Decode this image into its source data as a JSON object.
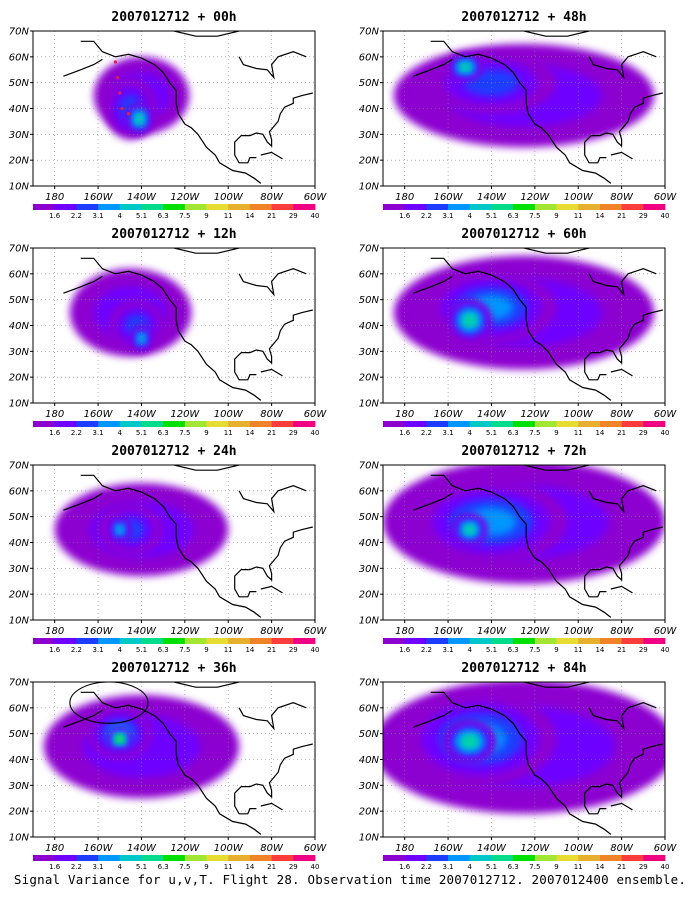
{
  "caption": "Signal Variance for u,v,T. Flight 28. Observation time 2007012712. 2007012400 ensemble.",
  "colors": [
    "#8c00d0",
    "#6e00ff",
    "#1e3cff",
    "#0096ff",
    "#00c8c8",
    "#00dc8c",
    "#00e000",
    "#a0e632",
    "#e6dc32",
    "#e6af2d",
    "#f08228",
    "#fa3c3c",
    "#f00082"
  ],
  "chart_data": [
    {
      "type": "heatmap",
      "title": "2007012712 + 00h",
      "x_ticks": [
        "180",
        "160W",
        "140W",
        "120W",
        "100W",
        "80W",
        "60W"
      ],
      "y_ticks": [
        "10N",
        "20N",
        "30N",
        "40N",
        "50N",
        "60N",
        "70N"
      ],
      "xlim": [
        -190,
        -60
      ],
      "ylim": [
        10,
        70
      ],
      "colorbar_levels": [
        "1.6",
        "2.2",
        "3.1",
        "4",
        "5.1",
        "6.3",
        "7.5",
        "9",
        "11",
        "14",
        "21",
        "29",
        "40"
      ],
      "blobs": [
        {
          "lon": -140,
          "lat": 45,
          "rx": 22,
          "ry": 15,
          "level": 1
        },
        {
          "lon": -145,
          "lat": 40,
          "rx": 12,
          "ry": 12,
          "level": 2
        },
        {
          "lon": -141,
          "lat": 36,
          "rx": 6,
          "ry": 6,
          "level": 5
        }
      ],
      "flight_track": [
        [
          -152,
          58
        ],
        [
          -151,
          52
        ],
        [
          -150,
          46
        ],
        [
          -149,
          40
        ],
        [
          -146,
          38
        ]
      ]
    },
    {
      "type": "heatmap",
      "title": "2007012712 + 48h",
      "x_ticks": [
        "180",
        "160W",
        "140W",
        "120W",
        "100W",
        "80W",
        "60W"
      ],
      "y_ticks": [
        "10N",
        "20N",
        "30N",
        "40N",
        "50N",
        "60N",
        "70N"
      ],
      "xlim": [
        -190,
        -60
      ],
      "ylim": [
        10,
        70
      ],
      "colorbar_levels": [
        "1.6",
        "2.2",
        "3.1",
        "4",
        "5.1",
        "6.3",
        "7.5",
        "9",
        "11",
        "14",
        "21",
        "29",
        "40"
      ],
      "blobs": [
        {
          "lon": -125,
          "lat": 45,
          "rx": 60,
          "ry": 20,
          "level": 1
        },
        {
          "lon": -140,
          "lat": 50,
          "rx": 30,
          "ry": 12,
          "level": 2
        },
        {
          "lon": -152,
          "lat": 56,
          "rx": 8,
          "ry": 5,
          "level": 5
        }
      ]
    },
    {
      "type": "heatmap",
      "title": "2007012712 + 12h",
      "x_ticks": [
        "180",
        "160W",
        "140W",
        "120W",
        "100W",
        "80W",
        "60W"
      ],
      "y_ticks": [
        "10N",
        "20N",
        "30N",
        "40N",
        "50N",
        "60N",
        "70N"
      ],
      "xlim": [
        -190,
        -60
      ],
      "ylim": [
        10,
        70
      ],
      "colorbar_levels": [
        "1.6",
        "2.2",
        "3.1",
        "4",
        "5.1",
        "6.3",
        "7.5",
        "9",
        "11",
        "14",
        "21",
        "29",
        "40"
      ],
      "blobs": [
        {
          "lon": -145,
          "lat": 45,
          "rx": 28,
          "ry": 17,
          "level": 1
        },
        {
          "lon": -142,
          "lat": 40,
          "rx": 13,
          "ry": 10,
          "level": 2
        },
        {
          "lon": -140,
          "lat": 35,
          "rx": 5,
          "ry": 5,
          "level": 4
        }
      ]
    },
    {
      "type": "heatmap",
      "title": "2007012712 + 60h",
      "x_ticks": [
        "180",
        "160W",
        "140W",
        "120W",
        "100W",
        "80W",
        "60W"
      ],
      "y_ticks": [
        "10N",
        "20N",
        "30N",
        "40N",
        "50N",
        "60N",
        "70N"
      ],
      "xlim": [
        -190,
        -60
      ],
      "ylim": [
        10,
        70
      ],
      "colorbar_levels": [
        "1.6",
        "2.2",
        "3.1",
        "4",
        "5.1",
        "6.3",
        "7.5",
        "9",
        "11",
        "14",
        "21",
        "29",
        "40"
      ],
      "blobs": [
        {
          "lon": -125,
          "lat": 45,
          "rx": 60,
          "ry": 22,
          "level": 1
        },
        {
          "lon": -140,
          "lat": 47,
          "rx": 30,
          "ry": 14,
          "level": 3
        },
        {
          "lon": -150,
          "lat": 42,
          "rx": 10,
          "ry": 8,
          "level": 5
        }
      ]
    },
    {
      "type": "heatmap",
      "title": "2007012712 + 24h",
      "x_ticks": [
        "180",
        "160W",
        "140W",
        "120W",
        "100W",
        "80W",
        "60W"
      ],
      "y_ticks": [
        "10N",
        "20N",
        "30N",
        "40N",
        "50N",
        "60N",
        "70N"
      ],
      "xlim": [
        -190,
        -60
      ],
      "ylim": [
        10,
        70
      ],
      "colorbar_levels": [
        "1.6",
        "2.2",
        "3.1",
        "4",
        "5.1",
        "6.3",
        "7.5",
        "9",
        "11",
        "14",
        "21",
        "29",
        "40"
      ],
      "blobs": [
        {
          "lon": -140,
          "lat": 45,
          "rx": 40,
          "ry": 18,
          "level": 1
        },
        {
          "lon": -145,
          "lat": 45,
          "rx": 15,
          "ry": 10,
          "level": 2
        },
        {
          "lon": -150,
          "lat": 45,
          "rx": 5,
          "ry": 5,
          "level": 4
        }
      ]
    },
    {
      "type": "heatmap",
      "title": "2007012712 + 72h",
      "x_ticks": [
        "180",
        "160W",
        "140W",
        "120W",
        "100W",
        "80W",
        "60W"
      ],
      "y_ticks": [
        "10N",
        "20N",
        "30N",
        "40N",
        "50N",
        "60N",
        "70N"
      ],
      "xlim": [
        -190,
        -60
      ],
      "ylim": [
        10,
        70
      ],
      "colorbar_levels": [
        "1.6",
        "2.2",
        "3.1",
        "4",
        "5.1",
        "6.3",
        "7.5",
        "9",
        "11",
        "14",
        "21",
        "29",
        "40"
      ],
      "blobs": [
        {
          "lon": -125,
          "lat": 48,
          "rx": 65,
          "ry": 24,
          "level": 1
        },
        {
          "lon": -140,
          "lat": 48,
          "rx": 35,
          "ry": 16,
          "level": 3
        },
        {
          "lon": -150,
          "lat": 45,
          "rx": 8,
          "ry": 6,
          "level": 5
        }
      ]
    },
    {
      "type": "heatmap",
      "title": "2007012712 + 36h",
      "x_ticks": [
        "180",
        "160W",
        "140W",
        "120W",
        "100W",
        "80W",
        "60W"
      ],
      "y_ticks": [
        "10N",
        "20N",
        "30N",
        "40N",
        "50N",
        "60N",
        "70N"
      ],
      "xlim": [
        -190,
        -60
      ],
      "ylim": [
        10,
        70
      ],
      "colorbar_levels": [
        "1.6",
        "2.2",
        "3.1",
        "4",
        "5.1",
        "6.3",
        "7.5",
        "9",
        "11",
        "14",
        "21",
        "29",
        "40"
      ],
      "blobs": [
        {
          "lon": -140,
          "lat": 45,
          "rx": 45,
          "ry": 20,
          "level": 1
        },
        {
          "lon": -150,
          "lat": 50,
          "rx": 15,
          "ry": 10,
          "level": 3
        },
        {
          "lon": -150,
          "lat": 48,
          "rx": 5,
          "ry": 4,
          "level": 7
        }
      ],
      "circle": {
        "lon": -155,
        "lat": 62,
        "rx": 18,
        "ry": 8
      }
    },
    {
      "type": "heatmap",
      "title": "2007012712 + 84h",
      "x_ticks": [
        "180",
        "160W",
        "140W",
        "120W",
        "100W",
        "80W",
        "60W"
      ],
      "y_ticks": [
        "10N",
        "20N",
        "30N",
        "40N",
        "50N",
        "60N",
        "70N"
      ],
      "xlim": [
        -190,
        -60
      ],
      "ylim": [
        10,
        70
      ],
      "colorbar_levels": [
        "1.6",
        "2.2",
        "3.1",
        "4",
        "5.1",
        "6.3",
        "7.5",
        "9",
        "11",
        "14",
        "21",
        "29",
        "40"
      ],
      "blobs": [
        {
          "lon": -125,
          "lat": 45,
          "rx": 70,
          "ry": 26,
          "level": 1
        },
        {
          "lon": -145,
          "lat": 48,
          "rx": 35,
          "ry": 18,
          "level": 3
        },
        {
          "lon": -150,
          "lat": 47,
          "rx": 12,
          "ry": 8,
          "level": 5
        }
      ]
    }
  ]
}
